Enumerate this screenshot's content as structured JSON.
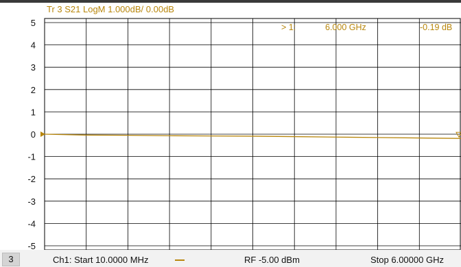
{
  "trace_title": "Tr 3  S21 LogM 1.000dB/  0.00dB",
  "marker": {
    "label": "> 1:",
    "freq": "6.000  GHz",
    "value": "-0.19 dB"
  },
  "footer": {
    "channel_number": "3",
    "start": "Ch1:  Start  10.0000 MHz",
    "rf": "RF  -5.00 dBm",
    "stop": "Stop  6.00000 GHz"
  },
  "colors": {
    "trace": "#b8860b",
    "grid": "#000000",
    "text": "#111111"
  },
  "chart_data": {
    "type": "line",
    "ylim": [
      -5,
      5
    ],
    "yticks": [
      "5",
      "4",
      "3",
      "2",
      "1",
      "0",
      "-1",
      "-2",
      "-3",
      "-4",
      "-5"
    ],
    "x_divisions": 10,
    "xlim": [
      0.01,
      6.0
    ],
    "x_unit": "GHz",
    "y_unit": "dB",
    "series": [
      {
        "x": [
          0.01,
          0.6,
          1.2,
          1.8,
          2.4,
          3.0,
          3.6,
          4.2,
          4.8,
          5.4,
          6.0
        ],
        "y": [
          0.0,
          -0.04,
          -0.05,
          -0.07,
          -0.08,
          -0.09,
          -0.11,
          -0.13,
          -0.15,
          -0.17,
          -0.19
        ]
      }
    ],
    "marker_point": {
      "x": 6.0,
      "y": -0.19
    }
  }
}
